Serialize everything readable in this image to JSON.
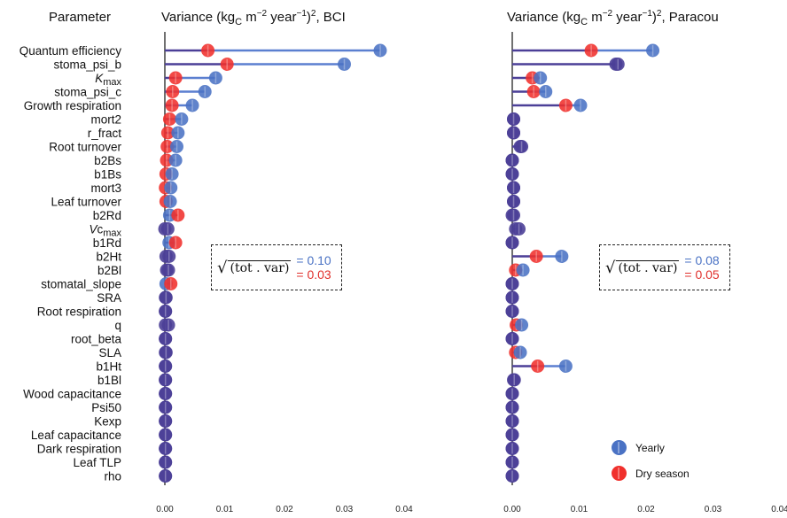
{
  "colors": {
    "yearly": "#4a72c4",
    "dry": "#f0302c",
    "overlap": "#4b3f97",
    "yearly_line": "#5b7fd0",
    "dry_line": "#4b3f97"
  },
  "header": {
    "parameter": "Parameter"
  },
  "legend": {
    "yearly": "Yearly",
    "dry": "Dry season"
  },
  "chart_data": [
    {
      "type": "lollipop",
      "title_prefix": "Variance (kg",
      "title_sub": "C",
      "title_mid": " m",
      "title_sup1": "−2",
      "title_mid2": " year",
      "title_sup2": "−1",
      "title_mid3": ")",
      "title_sup3": "2",
      "title_suffix": ", BCI",
      "xlim": [
        0,
        0.04
      ],
      "xticks": [
        "0.00",
        "0.01",
        "0.02",
        "0.03",
        "0.04"
      ],
      "categories": [
        "Quantum efficiency",
        "stoma_psi_b",
        "Kmax",
        "stoma_psi_c",
        "Growth respiration",
        "mort2",
        "r_fract",
        "Root turnover",
        "b2Bs",
        "b1Bs",
        "mort3",
        "Leaf turnover",
        "b2Rd",
        "Vcmax",
        "b1Rd",
        "b2Ht",
        "b2Bl",
        "stomatal_slope",
        "SRA",
        "Root respiration",
        "q",
        "root_beta",
        "SLA",
        "b1Ht",
        "b1Bl",
        "Wood capacitance",
        "Psi50",
        "Kexp",
        "Leaf capacitance",
        "Dark respiration",
        "Leaf TLP",
        "rho"
      ],
      "series": [
        {
          "name": "Yearly",
          "values": [
            0.036,
            0.03,
            0.0085,
            0.0067,
            0.0046,
            0.0028,
            0.0022,
            0.002,
            0.0018,
            0.0012,
            0.001,
            0.0009,
            0.0008,
            0.0005,
            0.0007,
            0.0007,
            0.0006,
            0.0002,
            0.0002,
            0.0001,
            0.0001,
            0.0001,
            0.0001,
            0.0001,
            0.0001,
            0.0001,
            0.0001,
            0.0001,
            0.0001,
            0.0001,
            0.0001,
            0.0001
          ]
        },
        {
          "name": "Dry season",
          "values": [
            0.0072,
            0.0104,
            0.0018,
            0.0013,
            0.0012,
            0.0008,
            0.0005,
            0.0004,
            0.0003,
            0.0002,
            0.0001,
            0.0002,
            0.0022,
            0.0,
            0.0018,
            0.0002,
            0.0003,
            0.001,
            0.0001,
            0.0001,
            0.0006,
            0.0001,
            0.0002,
            0.0001,
            0.0001,
            0.0001,
            0.0001,
            0.0001,
            0.0001,
            0.0001,
            0.0001,
            0.0001
          ]
        }
      ],
      "annotation": {
        "label": "tot . var",
        "yearly": "= 0.10",
        "dry": "= 0.03"
      }
    },
    {
      "type": "lollipop",
      "title_prefix": "Variance (kg",
      "title_sub": "C",
      "title_mid": " m",
      "title_sup1": "−2",
      "title_mid2": " year",
      "title_sup2": "−1",
      "title_mid3": ")",
      "title_sup3": "2",
      "title_suffix": ", Paracou",
      "xlim": [
        0,
        0.04
      ],
      "xticks": [
        "0.00",
        "0.01",
        "0.02",
        "0.03",
        "0.04"
      ],
      "categories": [
        "Quantum efficiency",
        "stoma_psi_b",
        "Kmax",
        "stoma_psi_c",
        "Growth respiration",
        "mort2",
        "r_fract",
        "Root turnover",
        "b2Bs",
        "b1Bs",
        "mort3",
        "Leaf turnover",
        "b2Rd",
        "Vcmax",
        "b1Rd",
        "b2Ht",
        "b2Bl",
        "stomatal_slope",
        "SRA",
        "Root respiration",
        "q",
        "root_beta",
        "SLA",
        "b1Ht",
        "b1Bl",
        "Wood capacitance",
        "Psi50",
        "Kexp",
        "Leaf capacitance",
        "Dark respiration",
        "Leaf TLP",
        "rho"
      ],
      "series": [
        {
          "name": "Yearly",
          "values": [
            0.021,
            0.0158,
            0.0042,
            0.005,
            0.0102,
            0.0002,
            0.0002,
            0.0014,
            0.0,
            0.0,
            0.0002,
            0.0002,
            0.0,
            0.001,
            0.0,
            0.0074,
            0.0016,
            0.0,
            0.0,
            0.0,
            0.0014,
            0.0,
            0.0012,
            0.008,
            0.0003,
            0.0,
            0.0,
            0.0,
            0.0,
            0.0,
            0.0,
            0.0
          ]
        },
        {
          "name": "Dry season",
          "values": [
            0.0118,
            0.0155,
            0.003,
            0.0032,
            0.008,
            0.0002,
            0.0002,
            0.0012,
            0.0,
            0.0,
            0.0002,
            0.0002,
            0.0002,
            0.0005,
            0.0,
            0.0036,
            0.0005,
            0.0,
            0.0,
            0.0,
            0.0006,
            0.0,
            0.0005,
            0.0038,
            0.0002,
            0.0,
            0.0,
            0.0,
            0.0,
            0.0,
            0.0,
            0.0
          ]
        }
      ],
      "annotation": {
        "label": "tot . var",
        "yearly": "= 0.08",
        "dry": "= 0.05"
      }
    }
  ]
}
